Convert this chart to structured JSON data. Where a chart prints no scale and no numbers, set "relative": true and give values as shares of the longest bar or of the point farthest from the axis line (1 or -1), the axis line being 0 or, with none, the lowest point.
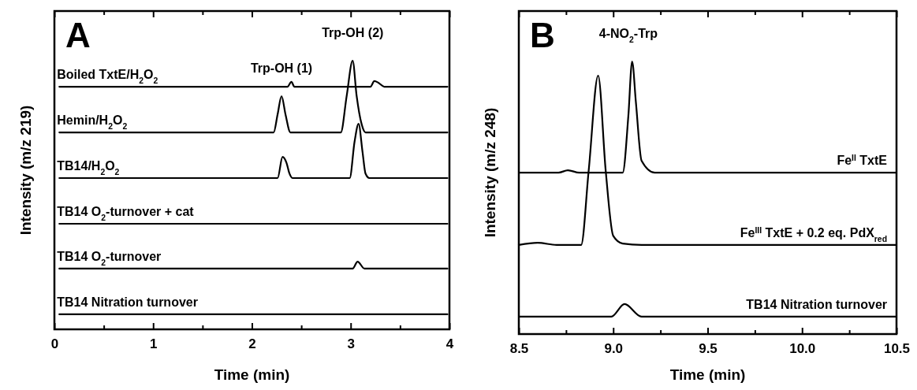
{
  "chart_data": [
    {
      "type": "line",
      "title": "A",
      "xlabel": "Time (min)",
      "ylabel": "Intensity (m/z 219)",
      "relative": true,
      "tick_labels": "x",
      "grid": false,
      "legend": false,
      "marker": "none",
      "line_style": "solid",
      "xlim": [
        0,
        4
      ],
      "xticks": [
        0,
        {
          "value": 0.5,
          "label": null
        },
        1,
        {
          "value": 1.5,
          "label": null
        },
        2,
        {
          "value": 2.5,
          "label": null
        },
        3,
        {
          "value": 3.5,
          "label": null
        },
        4
      ],
      "annotations": [
        {
          "text": "Trp-OH (1)",
          "x": 2.3,
          "y": 0.868
        },
        {
          "text": "Trp-OH (2)",
          "x": 3.02,
          "y": 1.0
        }
      ],
      "series": [
        {
          "name": "Boiled TxtE/H$_{2}$O$_{2}$",
          "color": "#000000",
          "x": [
            0.05,
            2.36,
            2.4,
            2.43,
            2.98,
            3.02,
            3.06,
            3.2,
            3.24,
            3.28,
            3.34,
            3.98
          ],
          "values": [
            0.903,
            0.903,
            0.921,
            0.903,
            0.903,
            0.903,
            0.903,
            0.903,
            0.924,
            0.918,
            0.903,
            0.903
          ]
        },
        {
          "name": "Hemin/H$_{2}$O$_{2}$",
          "color": "#000000",
          "x": [
            0.05,
            2.22,
            2.26,
            2.3,
            2.34,
            2.39,
            2.9,
            2.96,
            3.02,
            3.06,
            3.11,
            3.15,
            3.98
          ],
          "values": [
            0.733,
            0.733,
            0.8,
            0.868,
            0.8,
            0.733,
            0.733,
            0.87,
            1.0,
            0.87,
            0.765,
            0.733,
            0.733
          ]
        },
        {
          "name": "TB14/H$_{2}$O$_{2}$",
          "color": "#000000",
          "x": [
            0.05,
            2.26,
            2.31,
            2.35,
            2.38,
            2.41,
            2.99,
            3.04,
            3.08,
            3.12,
            3.15,
            3.19,
            3.98
          ],
          "values": [
            0.563,
            0.563,
            0.642,
            0.62,
            0.58,
            0.563,
            0.563,
            0.7,
            0.765,
            0.66,
            0.58,
            0.563,
            0.563
          ]
        },
        {
          "name": "TB14 O$_{2}$-turnover + cat",
          "color": "#000000",
          "x": [
            0.05,
            3.98
          ],
          "values": [
            0.393,
            0.393
          ]
        },
        {
          "name": "TB14 O$_{2}$-turnover",
          "color": "#000000",
          "x": [
            0.05,
            3.02,
            3.07,
            3.14,
            3.98
          ],
          "values": [
            0.226,
            0.226,
            0.252,
            0.226,
            0.226
          ]
        },
        {
          "name": "TB14 Nitration turnover",
          "color": "#000000",
          "x": [
            0.05,
            3.98
          ],
          "values": [
            0.056,
            0.056
          ]
        }
      ]
    },
    {
      "type": "line",
      "title": "B",
      "xlabel": "Time (min)",
      "ylabel": "Intensity (m/z 248)",
      "relative": true,
      "tick_labels": "x",
      "grid": false,
      "legend": false,
      "marker": "none",
      "line_style": "solid",
      "xlim": [
        8.5,
        10.5
      ],
      "xticks": [
        {
          "value": 8.5,
          "label": "8.5"
        },
        {
          "value": 8.75,
          "label": null
        },
        {
          "value": 9,
          "label": "9.0"
        },
        {
          "value": 9.25,
          "label": null
        },
        {
          "value": 9.5,
          "label": "9.5"
        },
        {
          "value": 9.75,
          "label": null
        },
        {
          "value": 10,
          "label": "10.0"
        },
        {
          "value": 10.25,
          "label": null
        },
        {
          "value": 10.5,
          "label": "10.5"
        }
      ],
      "annotations": [
        {
          "text": "4-NO$_{2}$-Trp",
          "x": 9.08,
          "y": 1.0
        }
      ],
      "series": [
        {
          "name": "Fe$^{II}$ TxtE",
          "color": "#000000",
          "x": [
            8.5,
            8.71,
            8.76,
            8.82,
            9.05,
            9.08,
            9.1,
            9.12,
            9.15,
            9.22,
            10.5
          ],
          "values": [
            0.592,
            0.592,
            0.601,
            0.592,
            0.592,
            0.8,
            1.0,
            0.85,
            0.636,
            0.592,
            0.592
          ]
        },
        {
          "name": "Fe$^{III}$ TxtE + 0.2 eq. PdX$_{red}$",
          "color": "#000000",
          "x": [
            8.5,
            8.6,
            8.7,
            8.83,
            8.87,
            8.92,
            8.96,
            9.0,
            9.05,
            9.15,
            10.5
          ],
          "values": [
            0.327,
            0.335,
            0.327,
            0.327,
            0.6,
            0.948,
            0.6,
            0.36,
            0.332,
            0.327,
            0.327
          ]
        },
        {
          "name": "TB14 Nitration turnover",
          "color": "#000000",
          "x": [
            8.5,
            8.99,
            9.06,
            9.15,
            10.5
          ],
          "values": [
            0.064,
            0.064,
            0.11,
            0.064,
            0.064
          ]
        }
      ]
    }
  ]
}
